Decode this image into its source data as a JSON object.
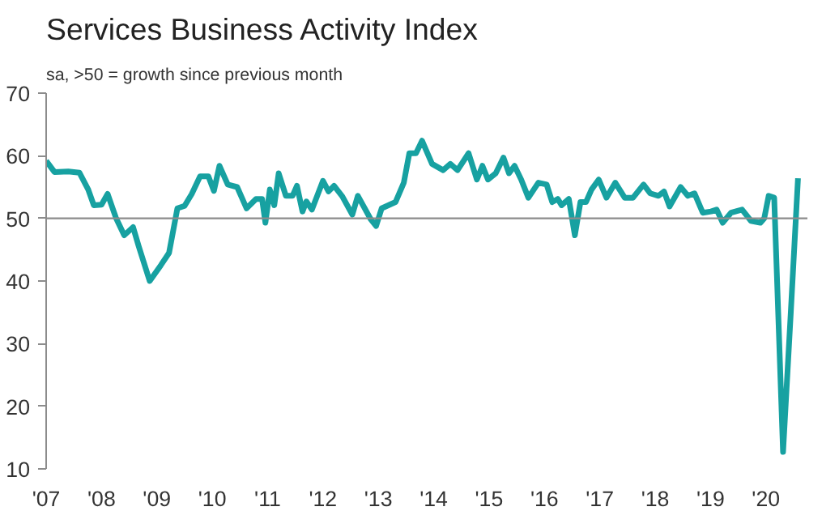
{
  "chart_data": {
    "type": "line",
    "title": "Services Business Activity Index",
    "subtitle": "sa, >50 = growth since previous month",
    "x": [
      2007.0,
      2007.15,
      2007.4,
      2007.6,
      2007.76,
      2007.86,
      2008.0,
      2008.11,
      2008.26,
      2008.41,
      2008.57,
      2008.67,
      2008.87,
      2009.07,
      2009.22,
      2009.37,
      2009.5,
      2009.63,
      2009.78,
      2009.93,
      2010.03,
      2010.13,
      2010.28,
      2010.45,
      2010.62,
      2010.79,
      2010.9,
      2010.96,
      2011.04,
      2011.12,
      2011.2,
      2011.33,
      2011.45,
      2011.53,
      2011.63,
      2011.7,
      2011.8,
      2012.0,
      2012.1,
      2012.2,
      2012.35,
      2012.53,
      2012.63,
      2012.86,
      2012.96,
      2013.06,
      2013.31,
      2013.46,
      2013.56,
      2013.68,
      2013.79,
      2013.97,
      2014.17,
      2014.3,
      2014.43,
      2014.63,
      2014.78,
      2014.88,
      2014.98,
      2015.12,
      2015.26,
      2015.36,
      2015.46,
      2015.58,
      2015.71,
      2015.89,
      2016.04,
      2016.14,
      2016.24,
      2016.31,
      2016.44,
      2016.55,
      2016.65,
      2016.75,
      2016.85,
      2016.98,
      2017.12,
      2017.28,
      2017.45,
      2017.6,
      2017.79,
      2017.91,
      2018.06,
      2018.16,
      2018.26,
      2018.46,
      2018.59,
      2018.71,
      2018.86,
      2019.01,
      2019.11,
      2019.22,
      2019.37,
      2019.57,
      2019.73,
      2019.9,
      2019.97,
      2020.05,
      2020.15,
      2020.31,
      2020.45,
      2020.58
    ],
    "series": [
      {
        "color": "#17a1a1",
        "values": [
          59.2,
          57.4,
          57.5,
          57.3,
          54.6,
          52.1,
          52.2,
          53.9,
          50.1,
          47.3,
          48.6,
          45.6,
          40.0,
          42.5,
          44.5,
          51.6,
          52.0,
          53.9,
          56.7,
          56.7,
          54.4,
          58.4,
          55.4,
          55.0,
          51.6,
          53.1,
          53.1,
          49.3,
          54.6,
          52.1,
          57.2,
          53.6,
          53.6,
          55.2,
          51.1,
          52.7,
          51.4,
          56.0,
          54.3,
          55.2,
          53.5,
          50.6,
          53.6,
          49.9,
          48.8,
          51.6,
          52.6,
          55.7,
          60.4,
          60.4,
          62.4,
          58.7,
          57.7,
          58.7,
          57.7,
          60.4,
          56.2,
          58.4,
          56.2,
          57.2,
          59.7,
          57.2,
          58.4,
          56.2,
          53.3,
          55.7,
          55.4,
          52.6,
          53.1,
          52.1,
          53.1,
          47.3,
          52.6,
          52.6,
          54.6,
          56.2,
          53.3,
          55.7,
          53.3,
          53.3,
          55.4,
          54.0,
          53.6,
          54.3,
          51.9,
          55.0,
          53.6,
          54.0,
          50.9,
          51.1,
          51.4,
          49.3,
          50.9,
          51.4,
          49.6,
          49.3,
          50.0,
          53.6,
          53.3,
          12.7,
          35.0,
          56.4
        ]
      }
    ],
    "xlim": [
      2007.0,
      2020.75
    ],
    "xticks": [
      {
        "value": 2007,
        "label": "'07"
      },
      {
        "value": 2008,
        "label": "'08"
      },
      {
        "value": 2009,
        "label": "'09"
      },
      {
        "value": 2010,
        "label": "'10"
      },
      {
        "value": 2011,
        "label": "'11"
      },
      {
        "value": 2012,
        "label": "'12"
      },
      {
        "value": 2013,
        "label": "'13"
      },
      {
        "value": 2014,
        "label": "'14"
      },
      {
        "value": 2015,
        "label": "'15"
      },
      {
        "value": 2016,
        "label": "'16"
      },
      {
        "value": 2017,
        "label": "'17"
      },
      {
        "value": 2018,
        "label": "'18"
      },
      {
        "value": 2019,
        "label": "'19"
      },
      {
        "value": 2020,
        "label": "'20"
      }
    ],
    "ylim": [
      10,
      70
    ],
    "yticks": [
      10,
      20,
      30,
      40,
      50,
      60,
      70
    ],
    "ref_lines": [
      {
        "axis": "y",
        "value": 50,
        "color": "#8c8c8c"
      }
    ],
    "grid": false,
    "marker": "none",
    "line_style": "solid"
  }
}
